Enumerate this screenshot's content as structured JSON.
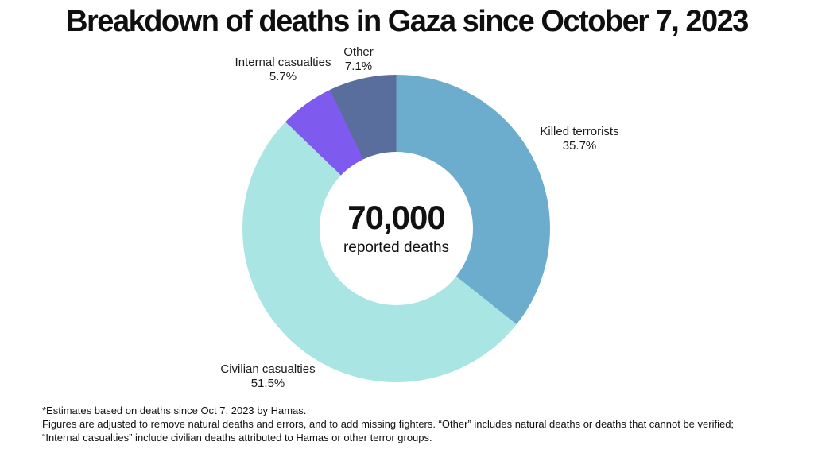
{
  "title": "Breakdown of deaths in Gaza since October 7, 2023",
  "chart_data": {
    "type": "pie",
    "subtype": "donut",
    "title": "Breakdown of deaths in Gaza since October 7, 2023",
    "direction": "clockwise",
    "start_angle_deg": 0,
    "center": {
      "value": "70,000",
      "label": "reported deaths"
    },
    "segments": [
      {
        "label": "Killed terrorists",
        "pct_label": "35.7%",
        "value": 35.7,
        "color": "#6CADCE"
      },
      {
        "label": "Civilian casualties",
        "pct_label": "51.5%",
        "value": 51.5,
        "color": "#A8E5E3"
      },
      {
        "label": "Internal casualties",
        "pct_label": "5.7%",
        "value": 5.7,
        "color": "#7F5AEE"
      },
      {
        "label": "Other",
        "pct_label": "7.1%",
        "value": 7.1,
        "color": "#5A6E9D"
      }
    ]
  },
  "footnotes": {
    "line1": "*Estimates based on deaths since Oct 7, 2023 by Hamas.",
    "line2": "Figures are adjusted to remove natural deaths and errors, and to add missing fighters. “Other” includes natural deaths or deaths that cannot be verified; “Internal casualties” include civilian deaths attributed to Hamas or other terror groups."
  }
}
